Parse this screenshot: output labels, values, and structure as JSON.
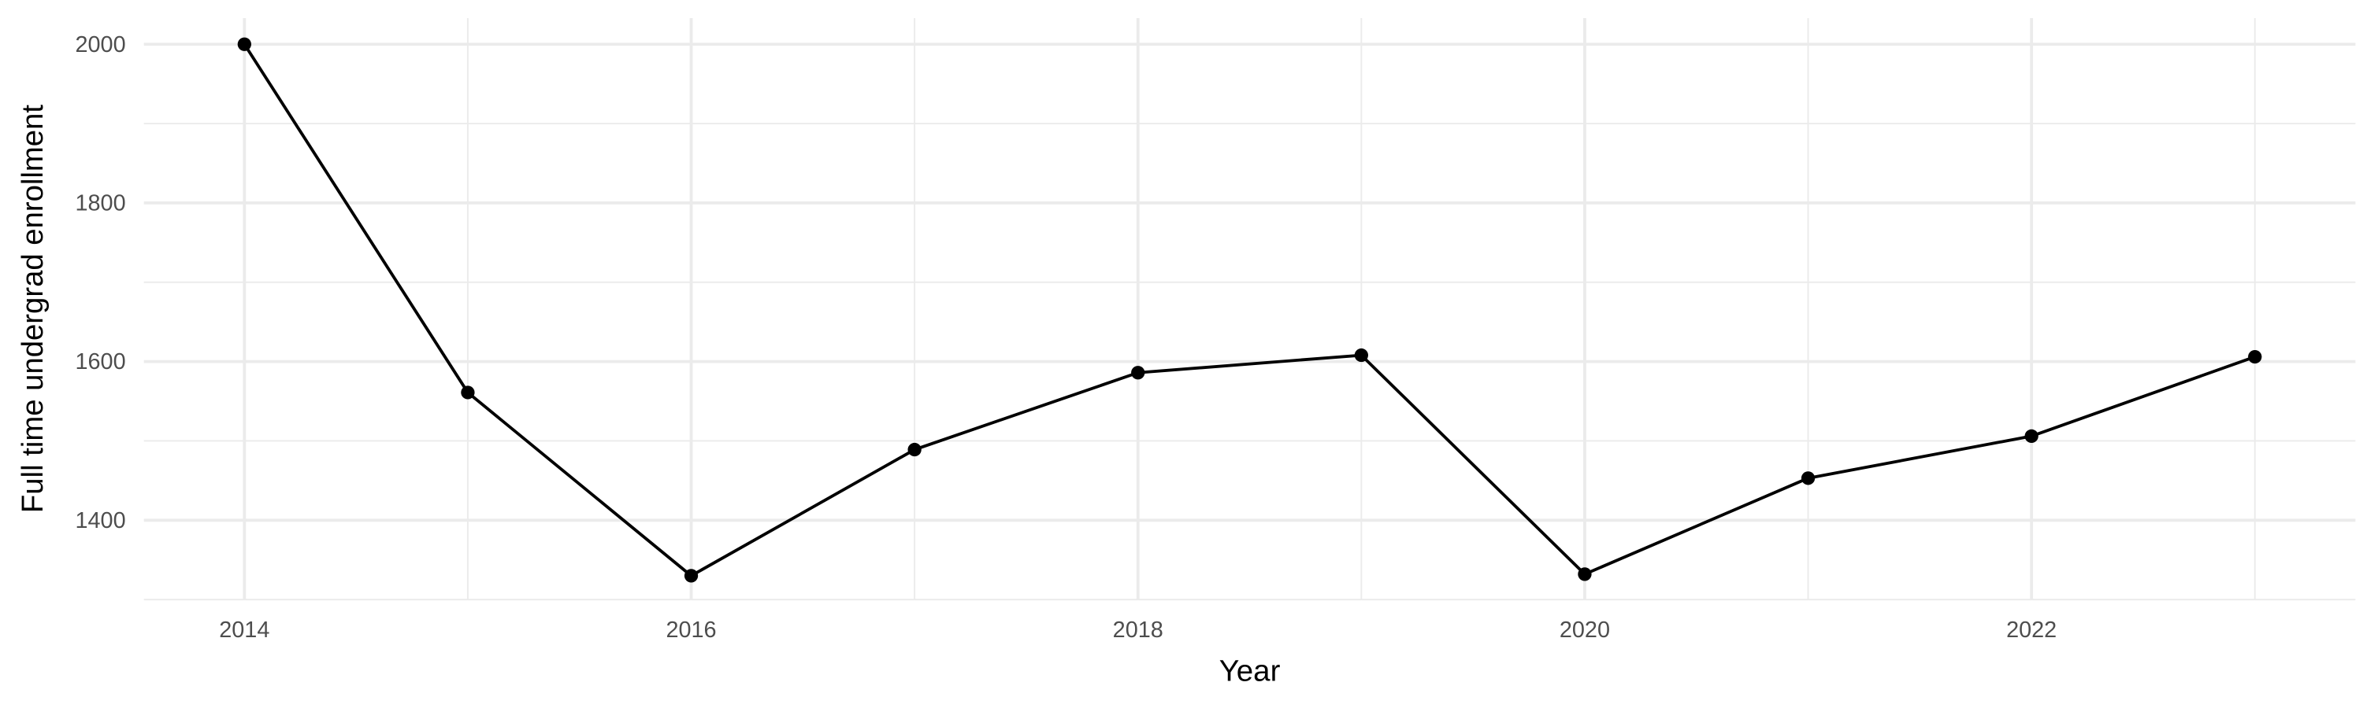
{
  "chart_data": {
    "type": "line",
    "title": "",
    "xlabel": "Year",
    "ylabel": "Full time undergrad enrollment",
    "x": [
      2014,
      2015,
      2016,
      2017,
      2018,
      2019,
      2020,
      2021,
      2022,
      2023
    ],
    "values": [
      2000,
      1561,
      1330,
      1489,
      1586,
      1608,
      1332,
      1453,
      1506,
      1606
    ],
    "x_ticks": [
      "2014",
      "2016",
      "2018",
      "2020",
      "2022"
    ],
    "y_ticks": [
      "1400",
      "1600",
      "1800",
      "2000"
    ],
    "xlim": [
      2013.55,
      2023.45
    ],
    "ylim": [
      1300,
      2033
    ],
    "grid": true,
    "line_color": "#000000",
    "marker": "circle",
    "grid_color": "#ebebeb"
  }
}
